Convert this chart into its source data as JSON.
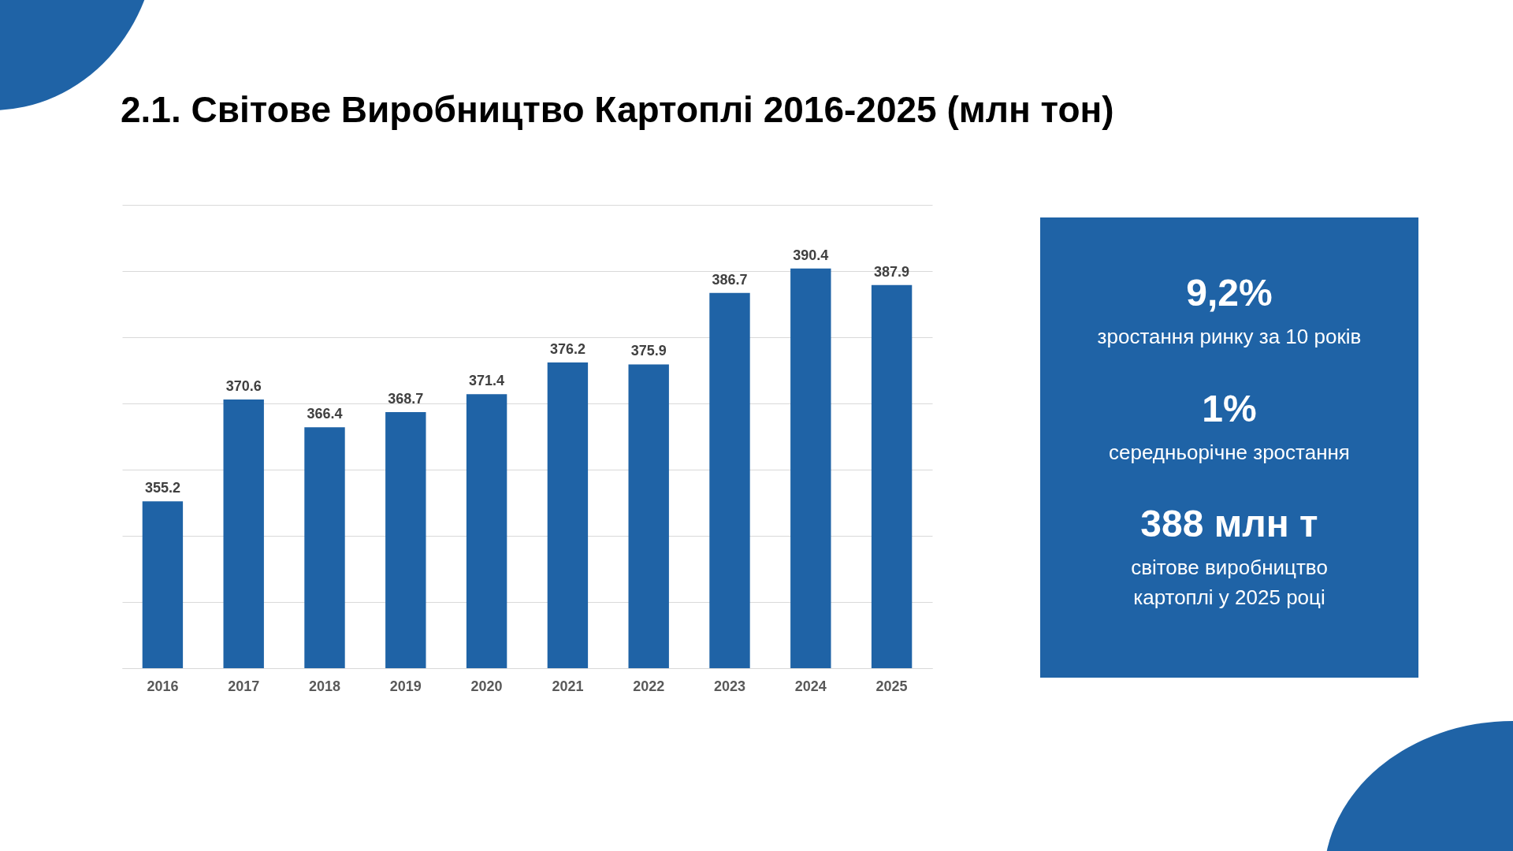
{
  "chart_data": [
    {
      "type": "bar",
      "title": "2.1. Світове Виробництво Картоплі 2016-2025 (млн тон)",
      "categories": [
        "2016",
        "2017",
        "2018",
        "2019",
        "2020",
        "2021",
        "2022",
        "2023",
        "2024",
        "2025"
      ],
      "values": [
        355.2,
        370.6,
        366.4,
        368.7,
        371.4,
        376.2,
        375.9,
        386.7,
        390.4,
        387.9
      ],
      "color": "#1f63a6",
      "ylim": [
        330,
        400
      ],
      "yticks": [
        {
          "value": 330,
          "label": null
        },
        {
          "value": 340,
          "label": null
        },
        {
          "value": 350,
          "label": null
        },
        {
          "value": 360,
          "label": null
        },
        {
          "value": 370,
          "label": null
        },
        {
          "value": 380,
          "label": null
        },
        {
          "value": 390,
          "label": null
        },
        {
          "value": 400,
          "label": null
        }
      ],
      "grid": "y",
      "tick_labels": "x",
      "data_labels": true
    },
    {
      "type": "other",
      "color": "#1f63a6",
      "annotations": [
        "9,2%",
        "зростання ринку за 10 років",
        "1%",
        "середньорічне зростання",
        "388 млн т",
        "світове виробництво картоплі у 2025 році"
      ]
    }
  ]
}
